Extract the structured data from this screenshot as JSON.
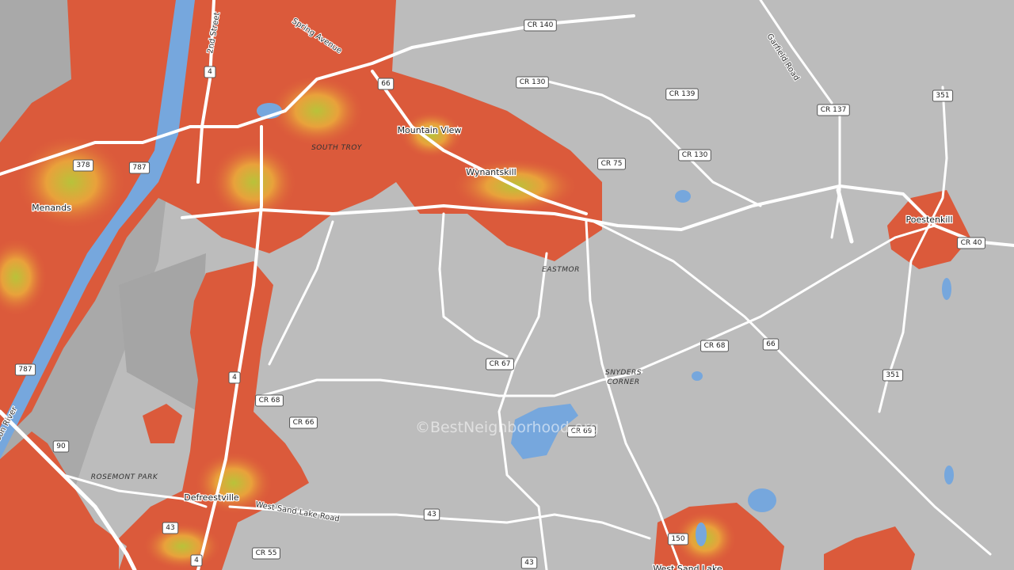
{
  "places": [
    "Menands",
    "Mountain View",
    "Wynantskill",
    "Poestenkill",
    "Defreestville",
    "West Sand Lake"
  ],
  "areas": [
    "SOUTH TROY",
    "EASTMOR",
    [
      "SNYDERS",
      "CORNER"
    ],
    "ROSEMONT PARK"
  ],
  "road_labels": [
    "Spring Avenue",
    "2nd Street",
    "Garfield Road",
    "West Sand Lake Road",
    "Hudson River"
  ],
  "shields": [
    "CR 140",
    "CR 130",
    "CR 139",
    "CR 130",
    "CR 137",
    "351",
    "66",
    "4",
    "378",
    "787",
    "CR 75",
    "CR 40",
    "CR 68",
    "66",
    "CR 67",
    "787",
    "4",
    "CR 68",
    "CR 66",
    "351",
    "90",
    "43",
    "43",
    "CR 55",
    "4",
    "43",
    "150",
    "CR 69"
  ],
  "watermark": "©BestNeighborhood.org"
}
